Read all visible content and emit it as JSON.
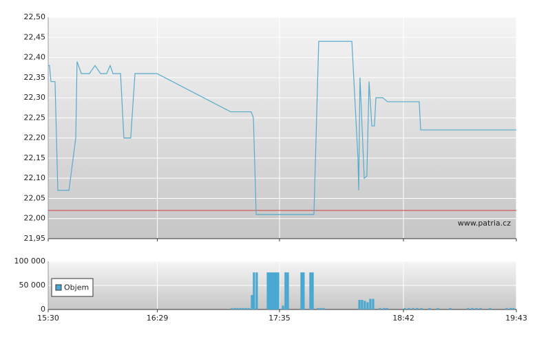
{
  "chart_data": [
    {
      "type": "line",
      "watermark": "www.patria.cz",
      "x": [
        930,
        930.7,
        931.5,
        933.7,
        935.2,
        941.2,
        944.9,
        945.6,
        947.9,
        952.3,
        955.3,
        958.3,
        961.6,
        963.5,
        965,
        969.1,
        970.9,
        974.6,
        976.9,
        988.8,
        1028.6,
        1039.7,
        1040.9,
        1042.4,
        1073.6,
        1076.2,
        1094.1,
        1097.4,
        1097.8,
        1098.5,
        1100.8,
        1102.2,
        1103.4,
        1104.9,
        1106.3,
        1107.1,
        1110.8,
        1113.4,
        1130.5,
        1131.3,
        1183
      ],
      "series": [
        {
          "color": "#56aacb",
          "values": [
            22.38,
            22.38,
            22.34,
            22.34,
            22.07,
            22.07,
            22.2,
            22.39,
            22.36,
            22.36,
            22.38,
            22.36,
            22.36,
            22.38,
            22.36,
            22.36,
            22.2,
            22.2,
            22.36,
            22.36,
            22.265,
            22.265,
            22.25,
            22.01,
            22.01,
            22.44,
            22.44,
            22.15,
            22.07,
            22.35,
            22.1,
            22.105,
            22.34,
            22.23,
            22.23,
            22.3,
            22.3,
            22.29,
            22.29,
            22.22,
            22.22
          ]
        }
      ],
      "reference_line": {
        "value": 22.02,
        "color": "#cc3b3b"
      },
      "xlim": [
        930,
        1183
      ],
      "ylim": [
        21.95,
        22.5
      ],
      "yticks": [
        {
          "value": 21.95,
          "label": "21,95"
        },
        {
          "value": 22.0,
          "label": "22,00"
        },
        {
          "value": 22.05,
          "label": "22,05"
        },
        {
          "value": 22.1,
          "label": "22,10"
        },
        {
          "value": 22.15,
          "label": "22,15"
        },
        {
          "value": 22.2,
          "label": "22,20"
        },
        {
          "value": 22.25,
          "label": "22,25"
        },
        {
          "value": 22.3,
          "label": "22,30"
        },
        {
          "value": 22.35,
          "label": "22,35"
        },
        {
          "value": 22.4,
          "label": "22,40"
        },
        {
          "value": 22.45,
          "label": "22,45"
        },
        {
          "value": 22.5,
          "label": "22,50"
        }
      ],
      "grid": true
    },
    {
      "type": "bar",
      "x": [
        1029.3,
        1030.8,
        1032.3,
        1033.8,
        1035.3,
        1036.8,
        1038.3,
        1040.1,
        1041.2,
        1042.7,
        1048.7,
        1049.8,
        1050.9,
        1052,
        1053.1,
        1054.3,
        1056.9,
        1058.3,
        1059.5,
        1066.9,
        1068,
        1071.7,
        1072.9,
        1075.8,
        1077.3,
        1078.8,
        1098.2,
        1099.6,
        1101.1,
        1102.6,
        1104.1,
        1105.6,
        1109.3,
        1111.5,
        1113,
        1122.7,
        1124.9,
        1127.2,
        1129.4,
        1131.6,
        1136.1,
        1140.6,
        1147.3,
        1156.9,
        1159.2,
        1161.4,
        1163.6,
        1168.8,
        1177.8,
        1180,
        1181.5
      ],
      "series": [
        {
          "name": "Objem",
          "color": "#4aa8d0",
          "values": [
            3000,
            3000,
            3000,
            3000,
            3000,
            3000,
            3000,
            30000,
            77000,
            77000,
            77000,
            77000,
            77000,
            77000,
            77000,
            77000,
            8000,
            77000,
            77000,
            77000,
            77000,
            77000,
            77000,
            3000,
            3000,
            3000,
            20000,
            20000,
            18000,
            15000,
            22000,
            22000,
            3000,
            3000,
            3000,
            3000,
            3000,
            3000,
            3000,
            3000,
            3000,
            3000,
            3000,
            3000,
            3000,
            3000,
            3000,
            3000,
            3000,
            3000,
            3000
          ]
        }
      ],
      "xlim": [
        930,
        1183
      ],
      "xticks": [
        {
          "value": 930,
          "label": "15:30"
        },
        {
          "value": 989,
          "label": "16:29"
        },
        {
          "value": 1055,
          "label": "17:35"
        },
        {
          "value": 1122,
          "label": "18:42"
        },
        {
          "value": 1183,
          "label": "19:43"
        }
      ],
      "ylim": [
        0,
        100000
      ],
      "yticks": [
        0,
        {
          "value": 50000,
          "label": "50 000"
        },
        {
          "value": 100000,
          "label": "100 000"
        }
      ],
      "grid": true,
      "legend": "upper-left"
    }
  ]
}
